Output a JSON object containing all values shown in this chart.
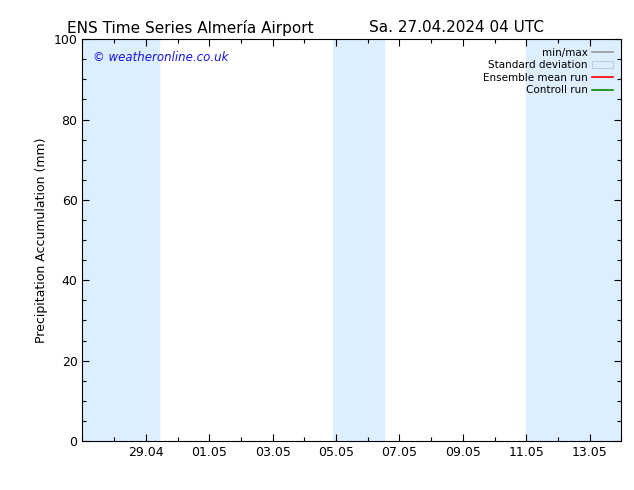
{
  "title_left": "ENS Time Series Almería Airport",
  "title_right": "Sa. 27.04.2024 04 UTC",
  "ylabel": "Precipitation Accumulation (mm)",
  "ylim": [
    0,
    100
  ],
  "yticks": [
    0,
    20,
    40,
    60,
    80,
    100
  ],
  "watermark": "© weatheronline.co.uk",
  "watermark_color": "#1515dd",
  "background_color": "#ffffff",
  "plot_bg_color": "#ffffff",
  "shaded_band_color": "#ddeeff",
  "legend_labels": [
    "min/max",
    "Standard deviation",
    "Ensemble mean run",
    "Controll run"
  ],
  "legend_line_colors": [
    "#999999",
    "#bbccdd",
    "#ff0000",
    "#008800"
  ],
  "xtick_labels": [
    "29.04",
    "01.05",
    "03.05",
    "05.05",
    "07.05",
    "09.05",
    "11.05",
    "13.05"
  ],
  "xtick_positions": [
    2,
    4,
    6,
    8,
    10,
    12,
    14,
    16
  ],
  "x_min": 0.0,
  "x_max": 17.0,
  "band1_x1": 0.0,
  "band1_x2": 2.4,
  "band2_x1": 7.9,
  "band2_x2": 9.5,
  "band3_x1": 14.0,
  "band3_x2": 17.0,
  "tick_color": "#000000",
  "axis_color": "#000000",
  "font_size": 9,
  "title_font_size": 11
}
